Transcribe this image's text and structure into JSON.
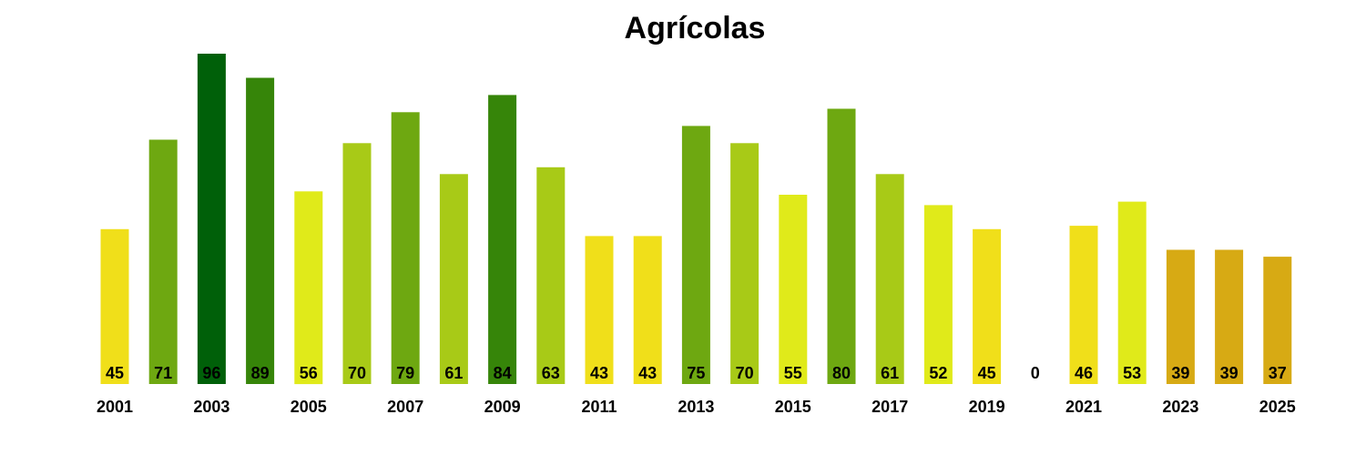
{
  "chart_data": {
    "type": "bar",
    "title": "Agrícolas",
    "xlabel": "",
    "ylabel": "",
    "ylim": [
      0,
      100
    ],
    "grid": false,
    "categories": [
      "2001",
      "2002",
      "2003",
      "2004",
      "2005",
      "2006",
      "2007",
      "2008",
      "2009",
      "2010",
      "2011",
      "2012",
      "2013",
      "2014",
      "2015",
      "2016",
      "2017",
      "2018",
      "2019",
      "2020",
      "2021",
      "2022",
      "2023",
      "2024",
      "2025"
    ],
    "values": [
      45,
      71,
      96,
      89,
      56,
      70,
      79,
      61,
      84,
      63,
      43,
      43,
      75,
      70,
      55,
      80,
      61,
      52,
      45,
      0,
      46,
      53,
      39,
      39,
      37
    ],
    "value_labels": [
      "45",
      "71",
      "96",
      "89",
      "56",
      "70",
      "79",
      "61",
      "84",
      "63",
      "43",
      "43",
      "75",
      "70",
      "55",
      "80",
      "61",
      "52",
      "45",
      "0",
      "46",
      "53",
      "39",
      "39",
      "37"
    ],
    "tick_labels": [
      "2001",
      "2003",
      "2005",
      "2007",
      "2009",
      "2011",
      "2013",
      "2015",
      "2017",
      "2019",
      "2021",
      "2023",
      "2025"
    ],
    "colors": [
      "#f0df1a",
      "#6ea811",
      "#006009",
      "#368509",
      "#e0ea1a",
      "#a8ca17",
      "#6ea811",
      "#a8ca17",
      "#368509",
      "#a8ca17",
      "#f0df1a",
      "#f0df1a",
      "#6ea811",
      "#a8ca17",
      "#e0ea1a",
      "#6ea811",
      "#a8ca17",
      "#e0ea1a",
      "#f0df1a",
      "#ffffff",
      "#f0df1a",
      "#e0ea1a",
      "#d7aa14",
      "#d7aa14",
      "#d7aa14"
    ]
  }
}
